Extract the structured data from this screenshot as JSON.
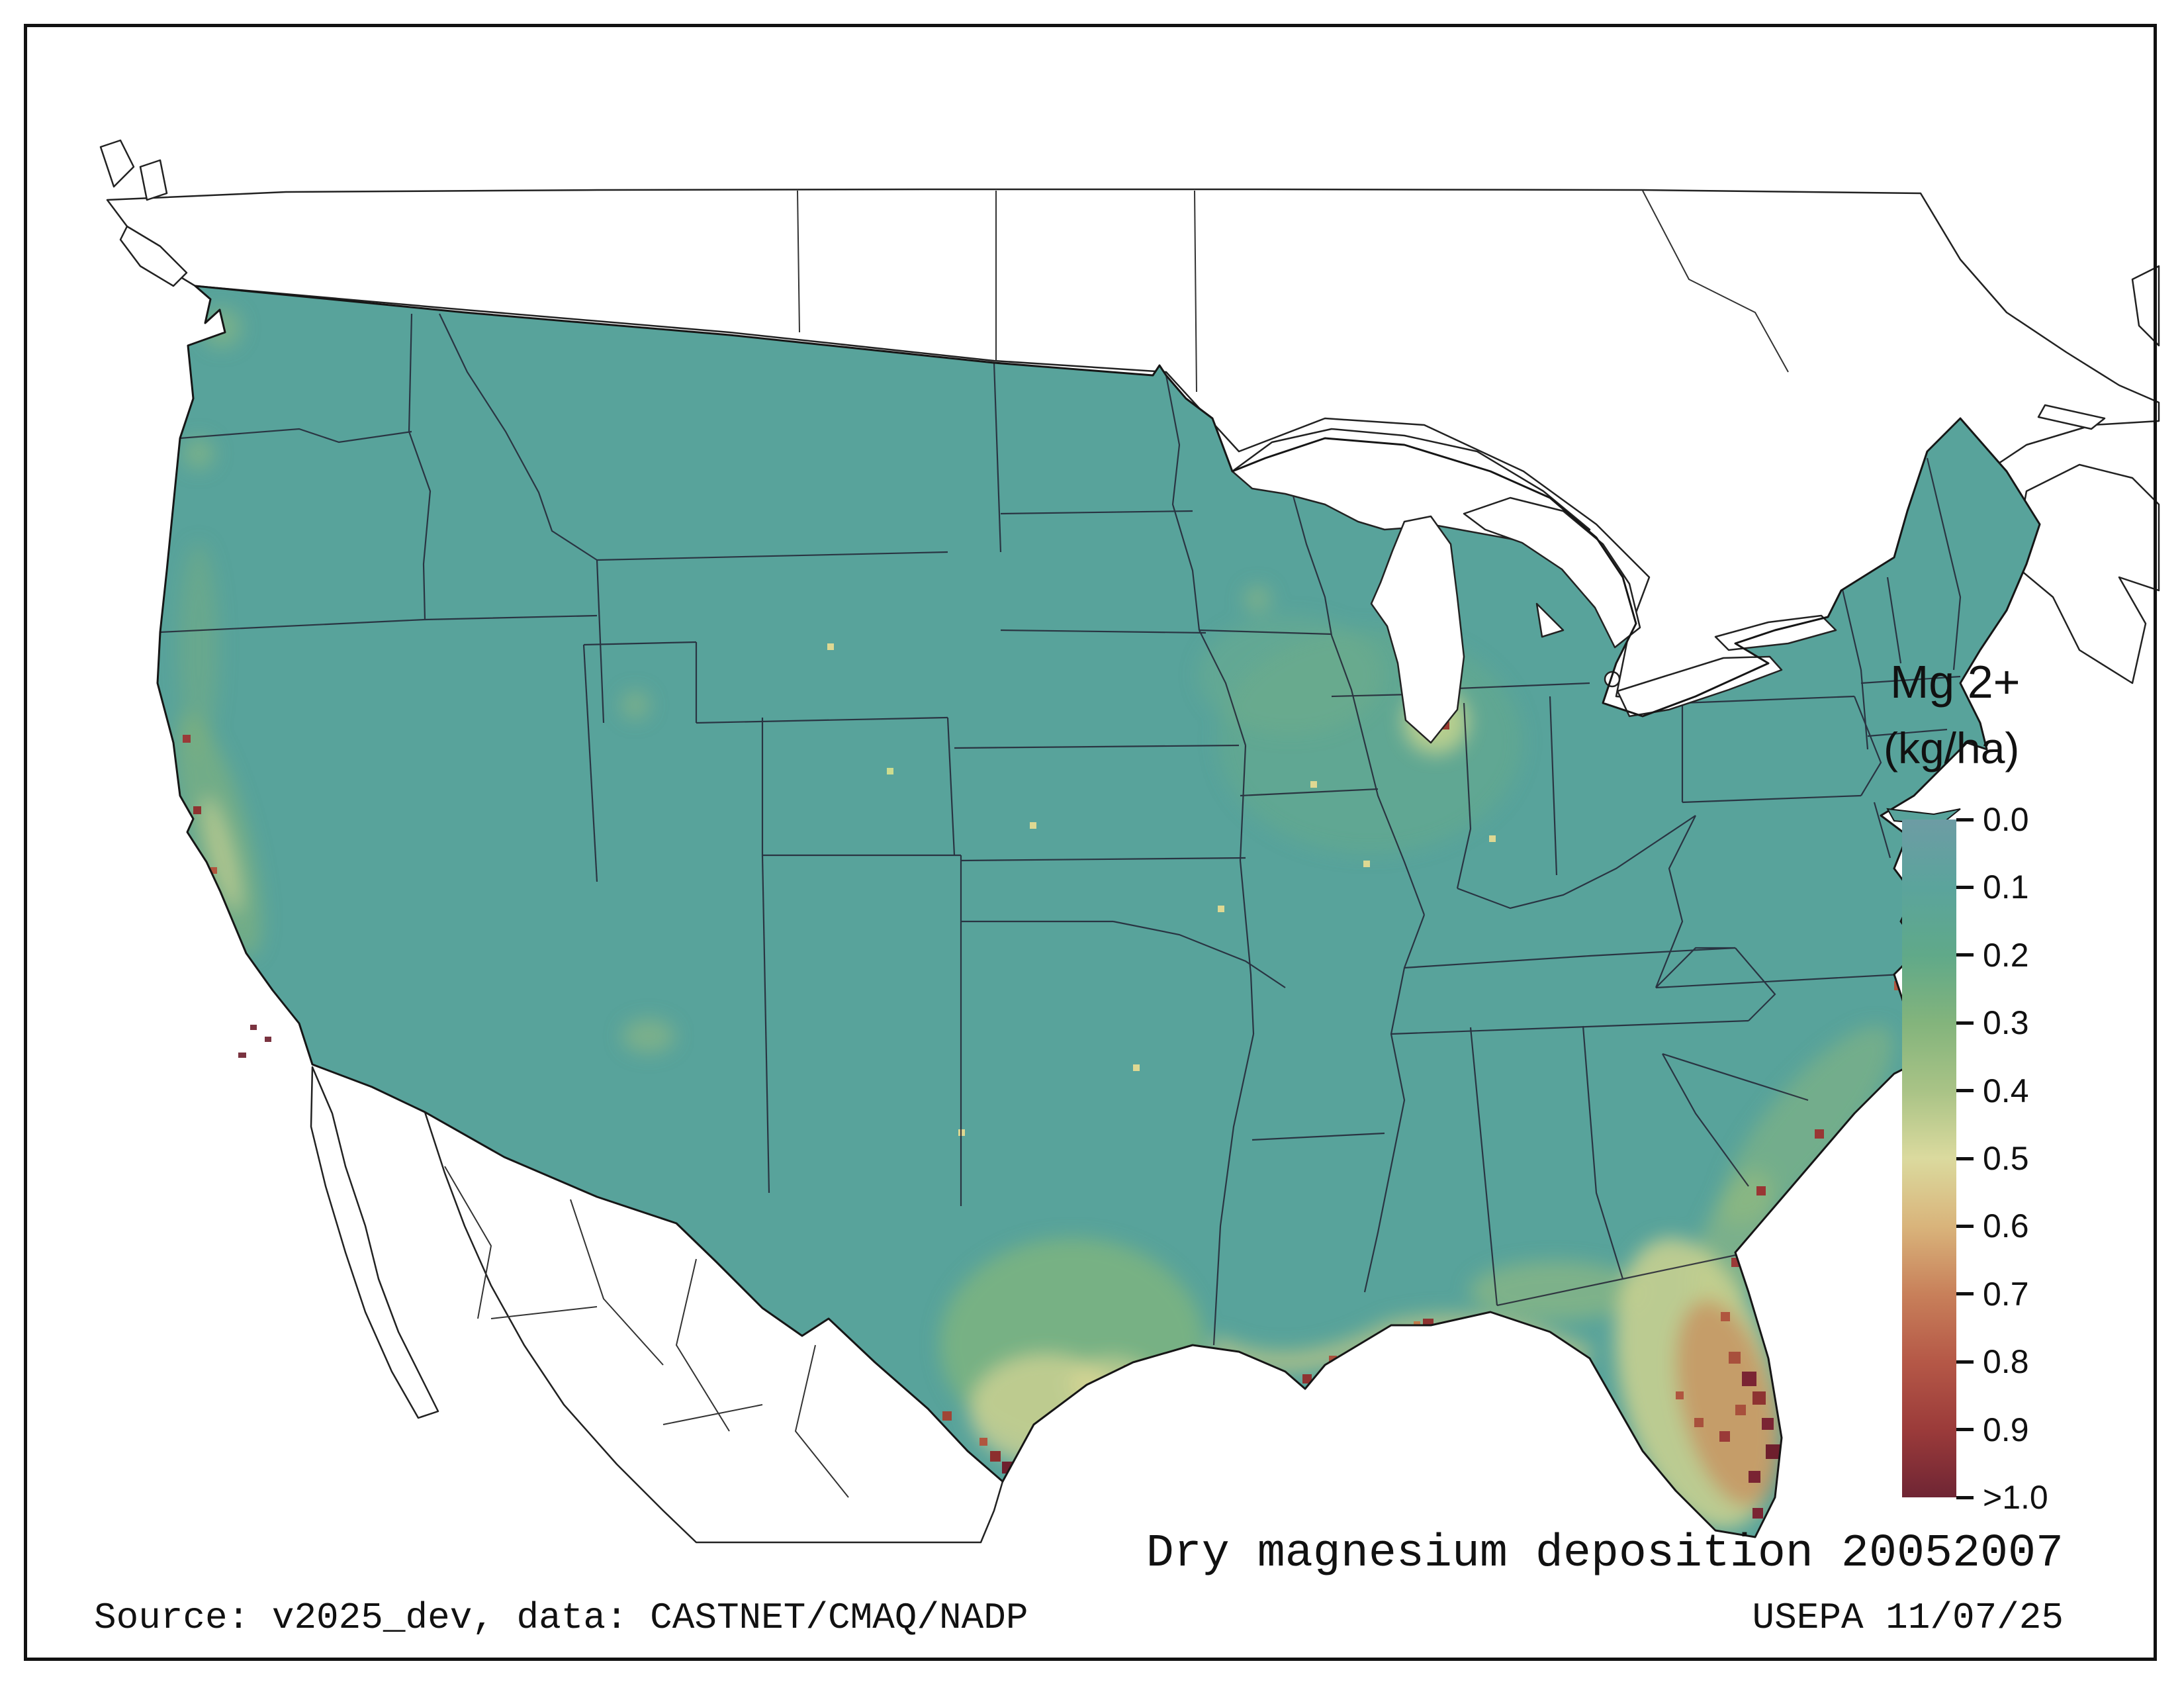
{
  "legend": {
    "title_line1": "Mg 2+",
    "title_line2": "(kg/ha)",
    "ticks": [
      "0.0",
      "0.1",
      "0.2",
      "0.3",
      "0.4",
      "0.5",
      "0.6",
      "0.7",
      "0.8",
      "0.9",
      ">1.0"
    ],
    "gradient_colors": [
      "#6d9ca4",
      "#5ba49c",
      "#60a989",
      "#83b47c",
      "#a9c386",
      "#dbda9e",
      "#d9b47b",
      "#c8805a",
      "#b55847",
      "#9b3b3a",
      "#6f2534"
    ]
  },
  "captions": {
    "title": "Dry magnesium deposition 20052007",
    "source": "Source: v2025_dev, data: CASTNET/CMAQ/NADP",
    "credit": "USEPA 11/07/25"
  },
  "map": {
    "variable": "Mg 2+",
    "units": "kg/ha",
    "scale_min_label": "0.0",
    "scale_max_label": ">1.0",
    "base_fill_color": "#58a39b",
    "hotspot_colors": [
      "#dcd794",
      "#c98a58",
      "#9a3a38",
      "#6e1f2d"
    ]
  }
}
